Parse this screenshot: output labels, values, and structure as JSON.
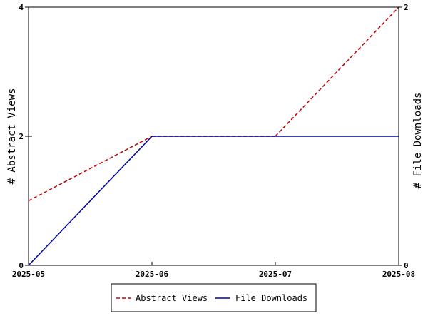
{
  "chart_data": {
    "type": "line",
    "x": [
      "2025-05",
      "2025-06",
      "2025-07",
      "2025-08"
    ],
    "y_left": {
      "label": "# Abstract Views",
      "range": [
        0,
        4
      ],
      "ticks": [
        "0",
        "2",
        "4"
      ]
    },
    "y_right": {
      "label": "# File Downloads",
      "range": [
        0,
        2
      ],
      "ticks": [
        "0",
        "2"
      ]
    },
    "series": [
      {
        "name": "Abstract Views",
        "axis": "left",
        "color": "#c00000",
        "style": "dashed",
        "values": [
          1,
          2,
          2,
          4
        ]
      },
      {
        "name": "File Downloads",
        "axis": "right",
        "color": "#0000a0",
        "style": "solid",
        "values": [
          0,
          1,
          1,
          1
        ]
      }
    ],
    "grid": false,
    "legend_position": "bottom-center"
  }
}
